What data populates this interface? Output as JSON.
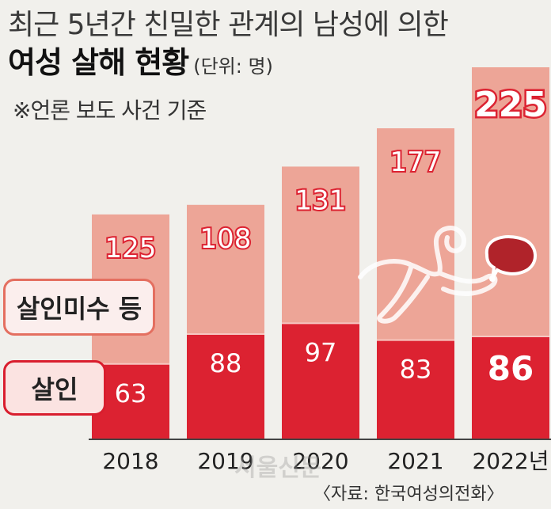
{
  "header": {
    "title_line1": "최근 5년간 친밀한 관계의 남성에 의한",
    "title_line2": "여성 살해 현황",
    "unit": "(단위: 명)",
    "note": "※언론 보도 사건 기준"
  },
  "legend": {
    "attempt": "살인미수 등",
    "murder": "살인"
  },
  "source": "〈자료: 한국여성의전화〉",
  "watermark": "서울신문",
  "colors": {
    "attempt": "#eda597",
    "murder": "#dc2231",
    "text_white": "#ffffff",
    "callout_fill": "#b0232a",
    "callout_stroke": "#ffffff"
  },
  "icons": [
    "body-outline-icon",
    "speech-bubble-icon"
  ],
  "chart_data": {
    "type": "bar",
    "stacked": true,
    "categories": [
      "2018",
      "2019",
      "2020",
      "2021",
      "2022년"
    ],
    "series": [
      {
        "name": "살인",
        "values": [
          63,
          88,
          97,
          83,
          86
        ]
      },
      {
        "name": "살인미수 등",
        "values": [
          125,
          108,
          131,
          177,
          225
        ]
      }
    ],
    "ylim": [
      0,
      311
    ]
  }
}
